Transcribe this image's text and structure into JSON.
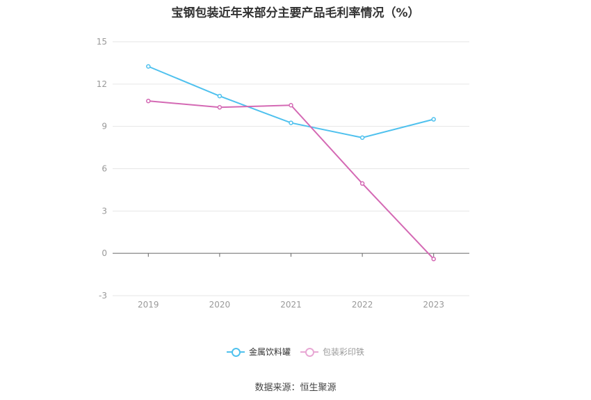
{
  "chart_data": {
    "type": "line",
    "title": "宝钢包装近年来部分主要产品毛利率情况（%）",
    "categories": [
      "2019",
      "2020",
      "2021",
      "2022",
      "2023"
    ],
    "series": [
      {
        "name": "金属饮料罐",
        "color": "#4fc1ee",
        "values": [
          13.25,
          11.15,
          9.25,
          8.2,
          9.5
        ]
      },
      {
        "name": "包装彩印铁",
        "color": "#d469b4",
        "values": [
          10.8,
          10.35,
          10.5,
          4.95,
          -0.4
        ]
      }
    ],
    "yticks": [
      -3,
      0,
      3,
      6,
      9,
      12,
      15
    ],
    "ylim": [
      -3,
      15
    ],
    "grid": true,
    "legend_position": "bottom"
  },
  "source": "数据来源：恒生聚源"
}
